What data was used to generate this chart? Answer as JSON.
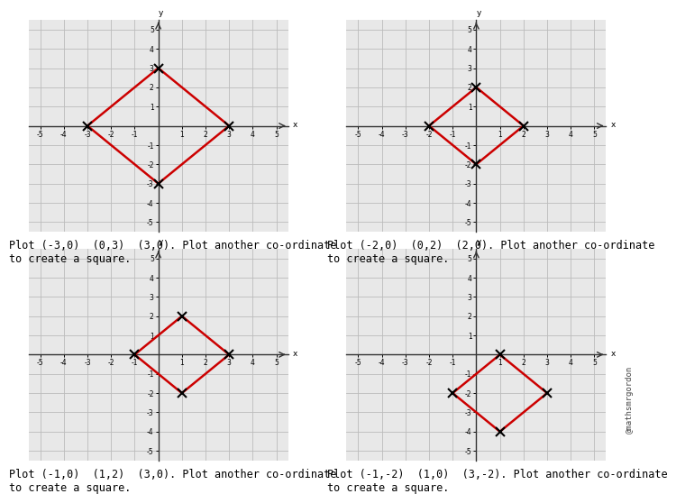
{
  "subplots": [
    {
      "points": [
        [
          -3,
          0
        ],
        [
          0,
          3
        ],
        [
          3,
          0
        ],
        [
          0,
          -3
        ]
      ],
      "label": "Plot (-3,0)  (0,3)  (3,0). Plot another co-ordinate\nto create a square.",
      "xlim": [
        -5.5,
        5.5
      ],
      "ylim": [
        -5.5,
        5.5
      ],
      "xticks": [
        -5,
        -4,
        -3,
        -2,
        -1,
        1,
        2,
        3,
        4,
        5
      ],
      "yticks": [
        -5,
        -4,
        -3,
        -2,
        -1,
        1,
        2,
        3,
        4,
        5
      ]
    },
    {
      "points": [
        [
          -2,
          0
        ],
        [
          0,
          2
        ],
        [
          2,
          0
        ],
        [
          0,
          -2
        ]
      ],
      "label": "Plot (-2,0)  (0,2)  (2,0). Plot another co-ordinate\nto create a square.",
      "xlim": [
        -5.5,
        5.5
      ],
      "ylim": [
        -5.5,
        5.5
      ],
      "xticks": [
        -5,
        -4,
        -3,
        -2,
        -1,
        1,
        2,
        3,
        4,
        5
      ],
      "yticks": [
        -5,
        -4,
        -3,
        -2,
        -1,
        1,
        2,
        3,
        4,
        5
      ]
    },
    {
      "points": [
        [
          -1,
          0
        ],
        [
          1,
          2
        ],
        [
          3,
          0
        ],
        [
          1,
          -2
        ]
      ],
      "label": "Plot (-1,0)  (1,2)  (3,0). Plot another co-ordinate\nto create a square.",
      "xlim": [
        -5.5,
        5.5
      ],
      "ylim": [
        -5.5,
        5.5
      ],
      "xticks": [
        -5,
        -4,
        -3,
        -2,
        -1,
        1,
        2,
        3,
        4,
        5
      ],
      "yticks": [
        -5,
        -4,
        -3,
        -2,
        -1,
        1,
        2,
        3,
        4,
        5
      ]
    },
    {
      "points": [
        [
          -1,
          -2
        ],
        [
          1,
          0
        ],
        [
          3,
          -2
        ],
        [
          1,
          -4
        ]
      ],
      "label": "Plot (-1,-2)  (1,0)  (3,-2). Plot another co-ordinate\nto create a square.",
      "xlim": [
        -5.5,
        5.5
      ],
      "ylim": [
        -5.5,
        5.5
      ],
      "xticks": [
        -5,
        -4,
        -3,
        -2,
        -1,
        1,
        2,
        3,
        4,
        5
      ],
      "yticks": [
        -5,
        -4,
        -3,
        -2,
        -1,
        1,
        2,
        3,
        4,
        5
      ]
    }
  ],
  "line_color": "#cc0000",
  "marker_color": "black",
  "axis_color": "#333333",
  "grid_color": "#bbbbbb",
  "plot_bg": "#e8e8e8",
  "fig_bg": "white",
  "watermark": "@mathsmrgordon",
  "caption_fontsize": 8.5,
  "tick_fontsize": 5.5
}
